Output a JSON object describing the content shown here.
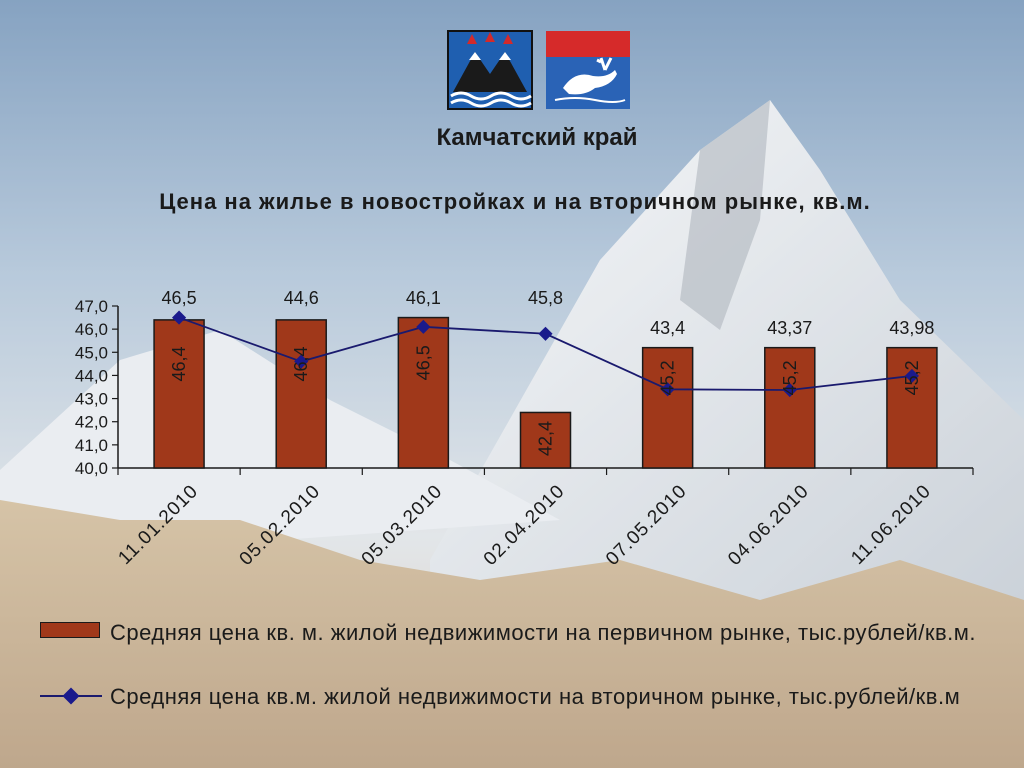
{
  "header": {
    "region_title": "Камчатский край",
    "emblem_left_icon": "kamchatka-coat-of-arms-icon",
    "emblem_right_icon": "koryak-okrug-coat-of-arms-icon"
  },
  "colors": {
    "bar_fill": "#a0381a",
    "bar_stroke": "#1a1a1a",
    "line": "#1a1a6e",
    "marker": "#1a1a8c",
    "text": "#1a1a1a"
  },
  "chart_data": {
    "type": "bar",
    "title": "Цена на жилье в новостройках и на вторичном рынке, кв.м.",
    "categories": [
      "11.01.2010",
      "05.02.2010",
      "05.03.2010",
      "02.04.2010",
      "07.05.2010",
      "04.06.2010",
      "11.06.2010"
    ],
    "ylim": [
      40,
      47
    ],
    "yticks": [
      "40,0",
      "41,0",
      "42,0",
      "43,0",
      "44,0",
      "45,0",
      "46,0",
      "47,0"
    ],
    "legend_position": "bottom",
    "grid": false,
    "series": [
      {
        "name": "Средняя цена кв. м. жилой недвижимости на первичном рынке, тыс.рублей/кв.м.",
        "type": "bar",
        "values": [
          46.4,
          46.4,
          46.5,
          42.4,
          45.2,
          45.2,
          45.2
        ],
        "labels": [
          "46,4",
          "46,4",
          "46,5",
          "42,4",
          "45,2",
          "45,2",
          "45,2"
        ]
      },
      {
        "name": "Средняя цена кв.м. жилой недвижимости на вторичном рынке, тыс.рублей/кв.м",
        "type": "line",
        "values": [
          46.5,
          44.6,
          46.1,
          45.8,
          43.4,
          43.37,
          43.98
        ],
        "labels": [
          "46,5",
          "44,6",
          "46,1",
          "45,8",
          "43,4",
          "43,37",
          "43,98"
        ]
      }
    ]
  }
}
